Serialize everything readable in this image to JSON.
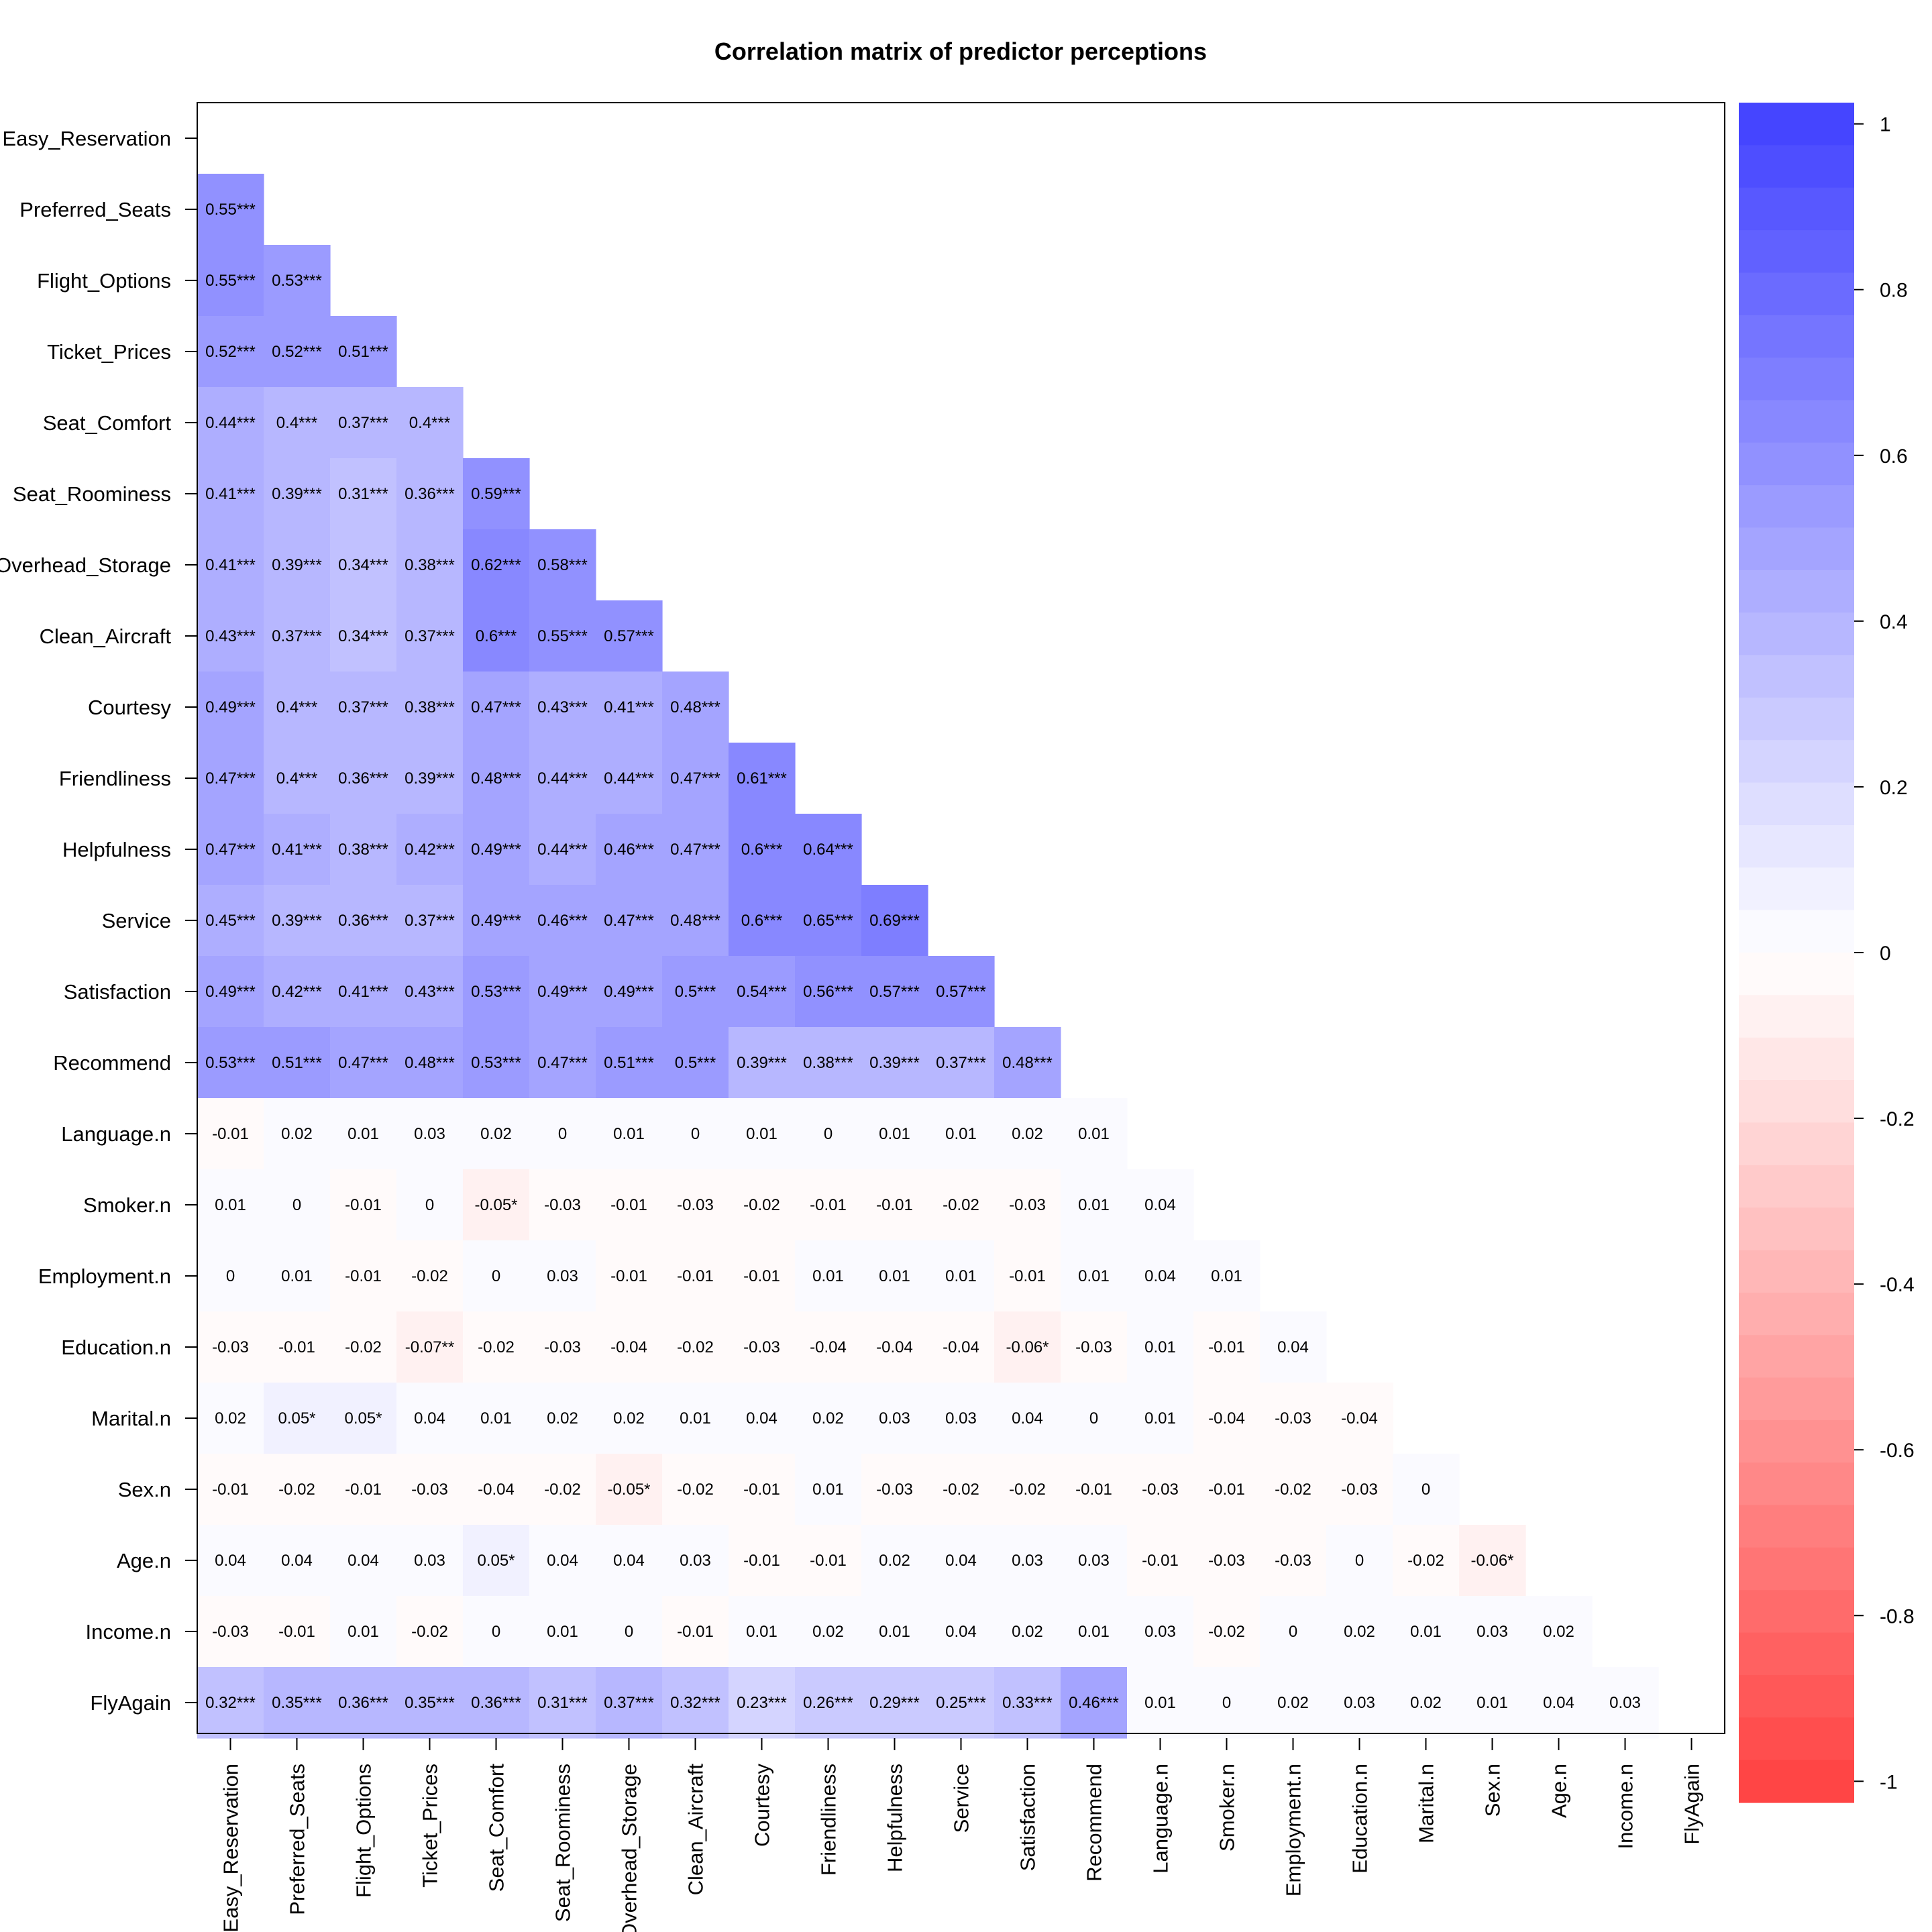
{
  "chart_data": {
    "type": "heatmap",
    "title": "Correlation matrix of predictor perceptions",
    "variables": [
      "Easy_Reservation",
      "Preferred_Seats",
      "Flight_Options",
      "Ticket_Prices",
      "Seat_Comfort",
      "Seat_Roominess",
      "Overhead_Storage",
      "Clean_Aircraft",
      "Courtesy",
      "Friendliness",
      "Helpfulness",
      "Service",
      "Satisfaction",
      "Recommend",
      "Language.n",
      "Smoker.n",
      "Employment.n",
      "Education.n",
      "Marital.n",
      "Sex.n",
      "Age.n",
      "Income.n",
      "FlyAgain"
    ],
    "layout": "lower-triangle",
    "lower_triangle_labels": [
      [],
      [
        "0.55***"
      ],
      [
        "0.55***",
        "0.53***"
      ],
      [
        "0.52***",
        "0.52***",
        "0.51***"
      ],
      [
        "0.44***",
        "0.4***",
        "0.37***",
        "0.4***"
      ],
      [
        "0.41***",
        "0.39***",
        "0.31***",
        "0.36***",
        "0.59***"
      ],
      [
        "0.41***",
        "0.39***",
        "0.34***",
        "0.38***",
        "0.62***",
        "0.58***"
      ],
      [
        "0.43***",
        "0.37***",
        "0.34***",
        "0.37***",
        "0.6***",
        "0.55***",
        "0.57***"
      ],
      [
        "0.49***",
        "0.4***",
        "0.37***",
        "0.38***",
        "0.47***",
        "0.43***",
        "0.41***",
        "0.48***"
      ],
      [
        "0.47***",
        "0.4***",
        "0.36***",
        "0.39***",
        "0.48***",
        "0.44***",
        "0.44***",
        "0.47***",
        "0.61***"
      ],
      [
        "0.47***",
        "0.41***",
        "0.38***",
        "0.42***",
        "0.49***",
        "0.44***",
        "0.46***",
        "0.47***",
        "0.6***",
        "0.64***"
      ],
      [
        "0.45***",
        "0.39***",
        "0.36***",
        "0.37***",
        "0.49***",
        "0.46***",
        "0.47***",
        "0.48***",
        "0.6***",
        "0.65***",
        "0.69***"
      ],
      [
        "0.49***",
        "0.42***",
        "0.41***",
        "0.43***",
        "0.53***",
        "0.49***",
        "0.49***",
        "0.5***",
        "0.54***",
        "0.56***",
        "0.57***",
        "0.57***"
      ],
      [
        "0.53***",
        "0.51***",
        "0.47***",
        "0.48***",
        "0.53***",
        "0.47***",
        "0.51***",
        "0.5***",
        "0.39***",
        "0.38***",
        "0.39***",
        "0.37***",
        "0.48***"
      ],
      [
        "-0.01",
        "0.02",
        "0.01",
        "0.03",
        "0.02",
        "0",
        "0.01",
        "0",
        "0.01",
        "0",
        "0.01",
        "0.01",
        "0.02",
        "0.01"
      ],
      [
        "0.01",
        "0",
        "-0.01",
        "0",
        "-0.05*",
        "-0.03",
        "-0.01",
        "-0.03",
        "-0.02",
        "-0.01",
        "-0.01",
        "-0.02",
        "-0.03",
        "0.01",
        "0.04"
      ],
      [
        "0",
        "0.01",
        "-0.01",
        "-0.02",
        "0",
        "0.03",
        "-0.01",
        "-0.01",
        "-0.01",
        "0.01",
        "0.01",
        "0.01",
        "-0.01",
        "0.01",
        "0.04",
        "0.01"
      ],
      [
        "-0.03",
        "-0.01",
        "-0.02",
        "-0.07**",
        "-0.02",
        "-0.03",
        "-0.04",
        "-0.02",
        "-0.03",
        "-0.04",
        "-0.04",
        "-0.04",
        "-0.06*",
        "-0.03",
        "0.01",
        "-0.01",
        "0.04"
      ],
      [
        "0.02",
        "0.05*",
        "0.05*",
        "0.04",
        "0.01",
        "0.02",
        "0.02",
        "0.01",
        "0.04",
        "0.02",
        "0.03",
        "0.03",
        "0.04",
        "0",
        "0.01",
        "-0.04",
        "-0.03",
        "-0.04"
      ],
      [
        "-0.01",
        "-0.02",
        "-0.01",
        "-0.03",
        "-0.04",
        "-0.02",
        "-0.05*",
        "-0.02",
        "-0.01",
        "0.01",
        "-0.03",
        "-0.02",
        "-0.02",
        "-0.01",
        "-0.03",
        "-0.01",
        "-0.02",
        "-0.03",
        "0"
      ],
      [
        "0.04",
        "0.04",
        "0.04",
        "0.03",
        "0.05*",
        "0.04",
        "0.04",
        "0.03",
        "-0.01",
        "-0.01",
        "0.02",
        "0.04",
        "0.03",
        "0.03",
        "-0.01",
        "-0.03",
        "-0.03",
        "0",
        "-0.02",
        "-0.06*"
      ],
      [
        "-0.03",
        "-0.01",
        "0.01",
        "-0.02",
        "0",
        "0.01",
        "0",
        "-0.01",
        "0.01",
        "0.02",
        "0.01",
        "0.04",
        "0.02",
        "0.01",
        "0.03",
        "-0.02",
        "0",
        "0.02",
        "0.01",
        "0.03",
        "0.02"
      ],
      [
        "0.32***",
        "0.35***",
        "0.36***",
        "0.35***",
        "0.36***",
        "0.31***",
        "0.37***",
        "0.32***",
        "0.23***",
        "0.26***",
        "0.29***",
        "0.25***",
        "0.33***",
        "0.46***",
        "0.01",
        "0",
        "0.02",
        "0.03",
        "0.02",
        "0.01",
        "0.04",
        "0.03"
      ]
    ],
    "colorbar": {
      "ticks": [
        "1",
        "0.8",
        "0.6",
        "0.4",
        "0.2",
        "0",
        "-0.2",
        "-0.4",
        "-0.6",
        "-0.8",
        "-1"
      ],
      "range": [
        -1,
        1
      ],
      "bins": 40,
      "positive_color": "#4040ff",
      "negative_color": "#ff4040",
      "zero_color": "#ffffff"
    },
    "grid": false
  }
}
